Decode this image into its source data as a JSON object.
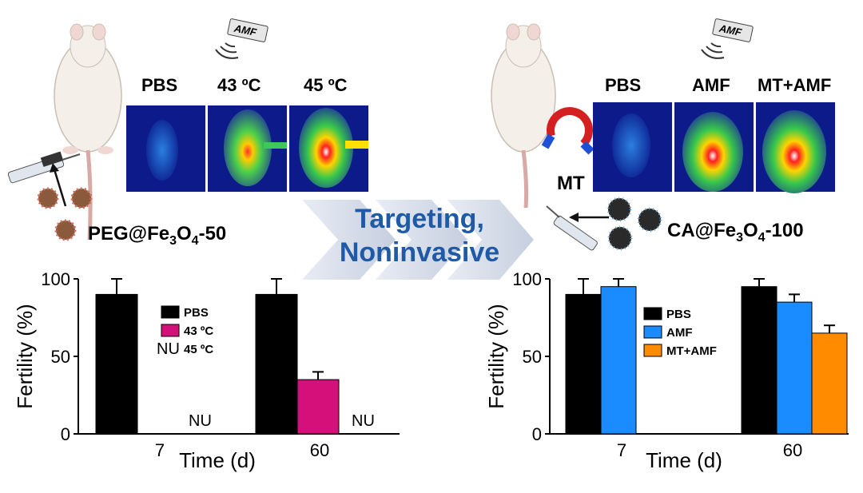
{
  "left_panel": {
    "image_headers": [
      "PBS",
      "43 ºC",
      "45 ºC"
    ],
    "amf_tag": "AMF",
    "nanoparticle_prefix": "PEG@Fe",
    "nanoparticle_sub1": "3",
    "nanoparticle_mid": "O",
    "nanoparticle_sub2": "4",
    "nanoparticle_suffix": "-50"
  },
  "right_panel": {
    "image_headers": [
      "PBS",
      "AMF",
      "MT+AMF"
    ],
    "amf_tag": "AMF",
    "magnet_label": "MT",
    "nanoparticle_prefix": "CA@Fe",
    "nanoparticle_sub1": "3",
    "nanoparticle_mid": "O",
    "nanoparticle_sub2": "4",
    "nanoparticle_suffix": "-100"
  },
  "center_banner": {
    "line1": "Targeting,",
    "line2": "Noninvasive"
  },
  "chart_data": [
    {
      "type": "bar",
      "title": "",
      "xlabel": "Time (d)",
      "ylabel": "Fertility (%)",
      "ylim": [
        0,
        100
      ],
      "yticks": [
        "0",
        "50",
        "100"
      ],
      "categories": [
        "7",
        "60"
      ],
      "series": [
        {
          "name": "PBS",
          "color": "#000000",
          "values": [
            90,
            90
          ],
          "errors": [
            10,
            10
          ]
        },
        {
          "name": "43 ºC",
          "color": "#d6107a",
          "values": [
            0,
            35
          ],
          "errors": [
            0,
            5
          ]
        },
        {
          "name": "45 ºC",
          "color": "#ffffff",
          "values": [
            null,
            null
          ],
          "errors": [
            0,
            0
          ],
          "legend_marker": "NU"
        }
      ],
      "annotations": [
        "NU",
        "NU"
      ],
      "legend_position": "inside-top"
    },
    {
      "type": "bar",
      "title": "",
      "xlabel": "Time (d)",
      "ylabel": "Fertility (%)",
      "ylim": [
        0,
        100
      ],
      "yticks": [
        "0",
        "50",
        "100"
      ],
      "categories": [
        "7",
        "60"
      ],
      "series": [
        {
          "name": "PBS",
          "color": "#000000",
          "values": [
            90,
            95
          ],
          "errors": [
            10,
            5
          ]
        },
        {
          "name": "AMF",
          "color": "#1a8cff",
          "values": [
            95,
            85
          ],
          "errors": [
            5,
            5
          ]
        },
        {
          "name": "MT+AMF",
          "color": "#ff8c00",
          "values": [
            null,
            65
          ],
          "errors": [
            0,
            5
          ]
        }
      ],
      "legend_position": "inside-left"
    }
  ]
}
